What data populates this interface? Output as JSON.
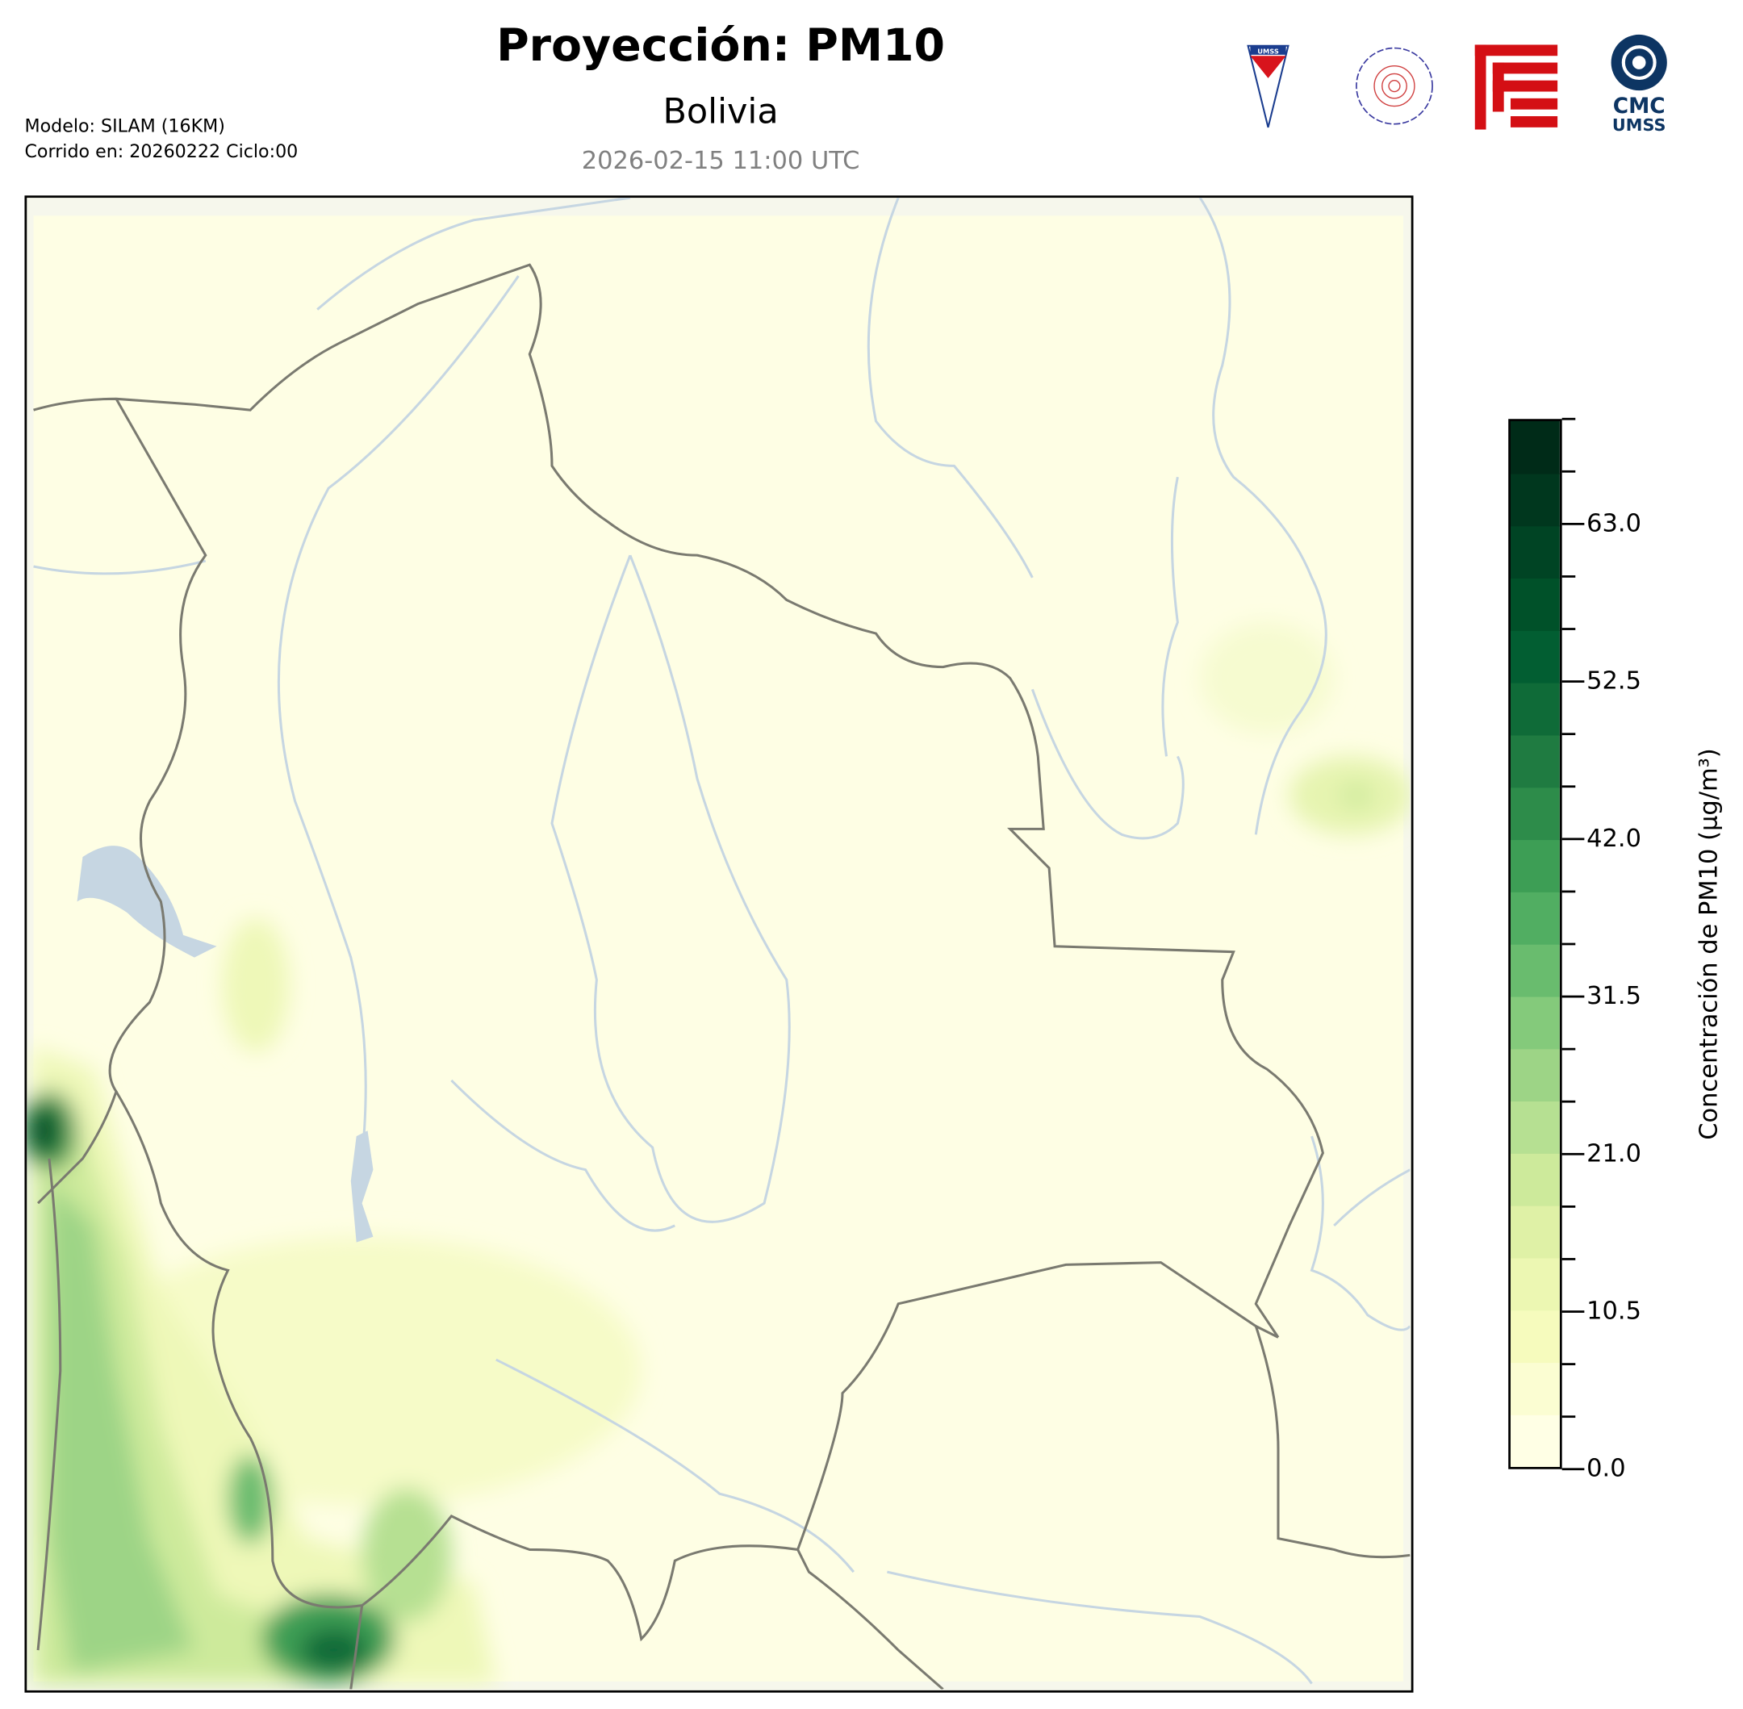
{
  "header": {
    "title": "Proyección: PM10",
    "subtitle": "Bolivia",
    "valid_time": "2026-02-15 11:00 UTC",
    "model_line": "Modelo: SILAM (16KM)",
    "run_line": "Corrido en: 20260222 Ciclo:00"
  },
  "logos": [
    {
      "name": "umss-shield",
      "text": "UMSS"
    },
    {
      "name": "departamento-de-fisica-seal",
      "text": "DEPARTAMENTO DE FÍSICA"
    },
    {
      "name": "fcyt-logo",
      "text": ""
    },
    {
      "name": "cmc-umss-logo",
      "text_1": "CMC",
      "text_2": "UMSS"
    }
  ],
  "colorbar": {
    "label": "Concentración de PM10 (µg/m³)",
    "min": 0,
    "max": 70,
    "step": 3.5,
    "ticks": [
      "0.0",
      "10.5",
      "21.0",
      "31.5",
      "42.0",
      "52.5",
      "63.0"
    ],
    "colors": [
      "#ffffe5",
      "#fbfdd2",
      "#f6fbbd",
      "#ecf7b2",
      "#dff1a6",
      "#cdea9b",
      "#b6e092",
      "#9dd486",
      "#84ca7b",
      "#69bc6e",
      "#51ae62",
      "#3d9e55",
      "#2d8c4a",
      "#1f7b41",
      "#0f6b38",
      "#025e32",
      "#005129",
      "#004424",
      "#00371e",
      "#002b18"
    ]
  },
  "map": {
    "land_color": "#ffffe5",
    "river_color": "#c6d6e2",
    "border_color": "#7a7a70",
    "lake_color": "#c6d6e2"
  }
}
